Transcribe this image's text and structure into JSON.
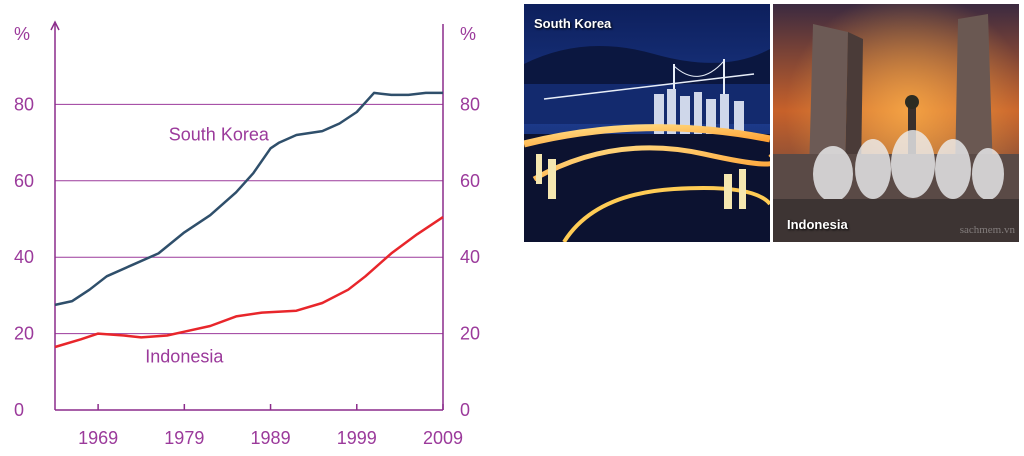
{
  "chart_data": {
    "type": "line",
    "title": "",
    "ylabel_left": "%",
    "ylabel_right": "%",
    "ylim": [
      0,
      100
    ],
    "xlim": [
      1964,
      2009
    ],
    "x_ticks": [
      "1969",
      "1979",
      "1989",
      "1999",
      "2009"
    ],
    "y_ticks": [
      "0",
      "20",
      "40",
      "60",
      "80"
    ],
    "grid": true,
    "series": [
      {
        "name": "South Korea",
        "color": "#2f4f6b",
        "x": [
          1964,
          1966,
          1968,
          1970,
          1973,
          1976,
          1979,
          1982,
          1985,
          1987,
          1989,
          1990,
          1992,
          1995,
          1997,
          1999,
          2001,
          2003,
          2005,
          2007,
          2009
        ],
        "y": [
          27.5,
          28.5,
          31.5,
          35,
          38,
          41,
          46.5,
          51,
          57,
          62,
          68.5,
          70,
          72,
          73,
          75,
          78,
          83,
          82.5,
          82.5,
          83,
          83
        ]
      },
      {
        "name": "Indonesia",
        "color": "#e8262b",
        "x": [
          1964,
          1967,
          1969,
          1972,
          1974,
          1977,
          1979,
          1982,
          1985,
          1988,
          1992,
          1995,
          1998,
          2000,
          2003,
          2006,
          2009
        ],
        "y": [
          16.5,
          18.5,
          20,
          19.5,
          19,
          19.5,
          20.5,
          22,
          24.5,
          25.5,
          26,
          28,
          31.5,
          35,
          41,
          46,
          50.5
        ]
      }
    ]
  },
  "photos": {
    "korea_label": "South Korea",
    "indonesia_label": "Indonesia",
    "watermark": "sachmem.vn"
  }
}
